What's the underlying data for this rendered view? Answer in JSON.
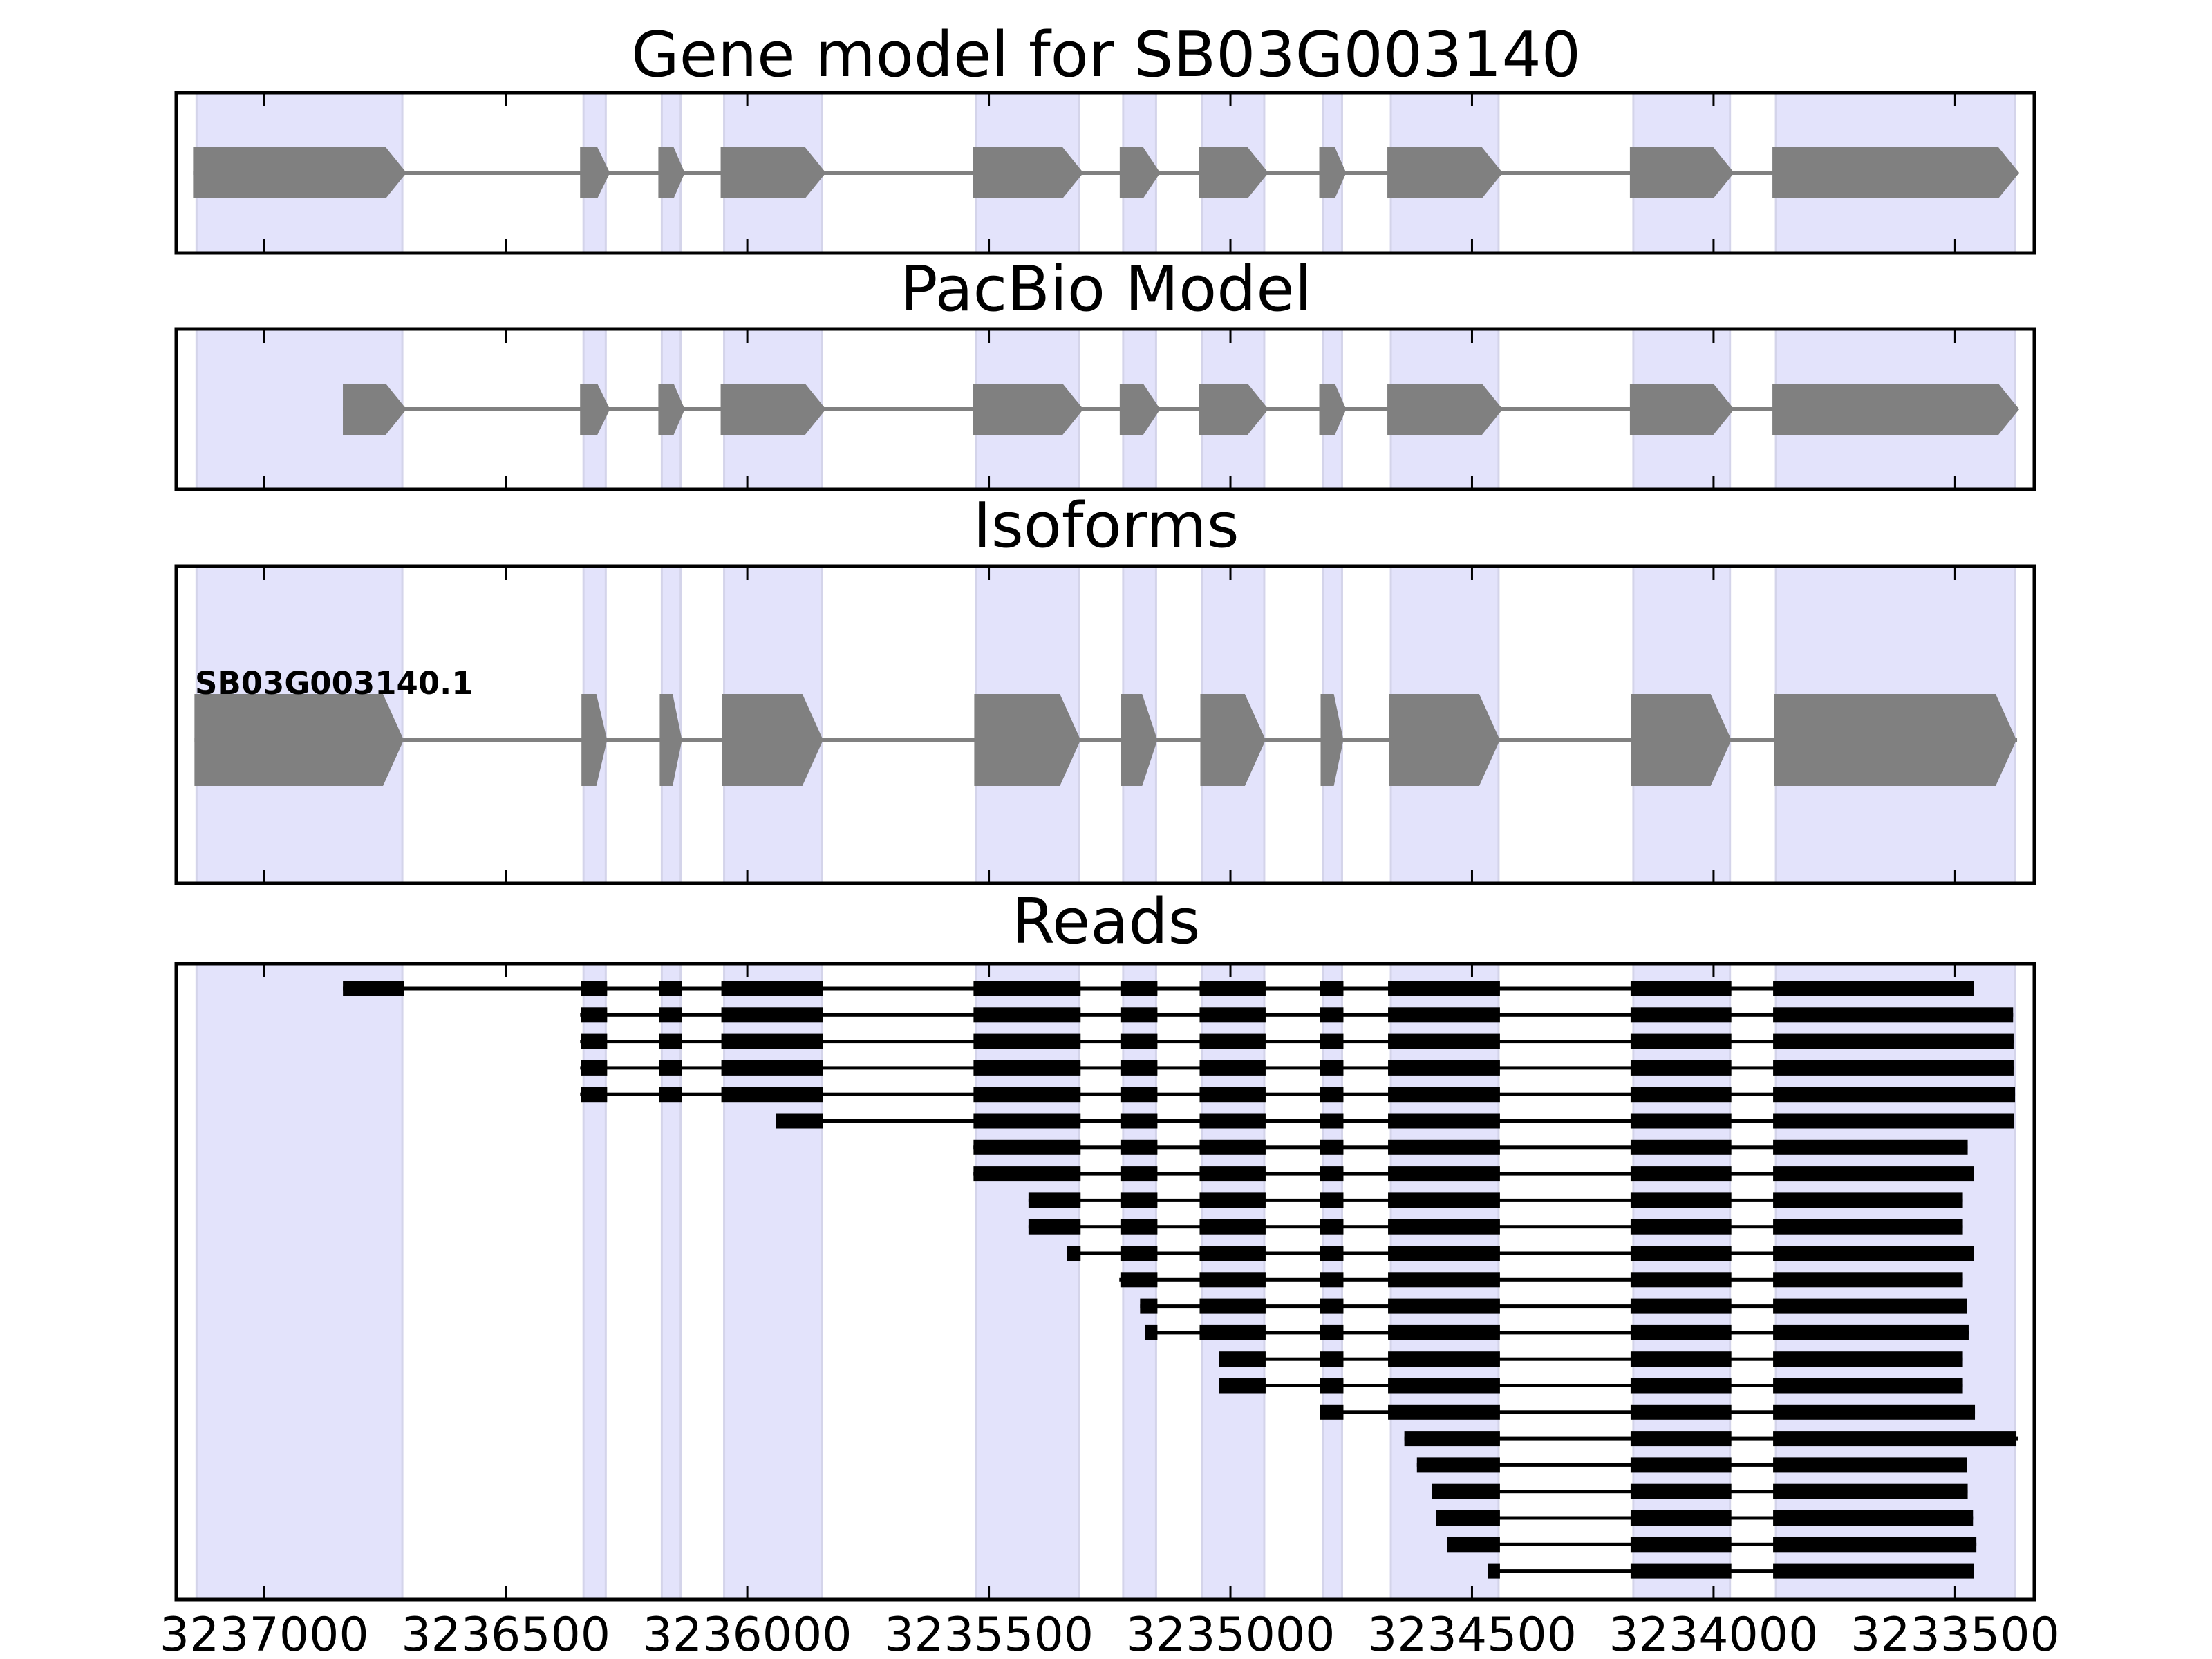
{
  "chart_data": {
    "type": "gene-track",
    "xlabel": "",
    "xlim": [
      3237182,
      3233336
    ],
    "x_ticks": [
      3237000,
      3236500,
      3236000,
      3235500,
      3235000,
      3234500,
      3234000,
      3233500
    ],
    "x_tick_labels": [
      "3237000",
      "3236500",
      "3236000",
      "3235500",
      "3235000",
      "3234500",
      "3234000",
      "3233500"
    ],
    "grid": false,
    "colors": {
      "exon_shade": "#e3e3fb",
      "exon_shade_edge": "#d4d4ea",
      "gene_model": "#808080",
      "read": "#000000",
      "frame": "#000000"
    },
    "exons": [
      {
        "start": 3237140,
        "end": 3236714
      },
      {
        "start": 3236339,
        "end": 3236293
      },
      {
        "start": 3236177,
        "end": 3236138
      },
      {
        "start": 3236048,
        "end": 3235846
      },
      {
        "start": 3235526,
        "end": 3235313
      },
      {
        "start": 3235222,
        "end": 3235154
      },
      {
        "start": 3235058,
        "end": 3234930
      },
      {
        "start": 3234809,
        "end": 3234769
      },
      {
        "start": 3234668,
        "end": 3234445
      },
      {
        "start": 3234166,
        "end": 3233966
      },
      {
        "start": 3233871,
        "end": 3233376
      }
    ],
    "panels": [
      {
        "id": "gene-model",
        "title": "Gene model for SB03G003140",
        "models": [
          {
            "label": "",
            "first_exon_start": 3237140
          }
        ]
      },
      {
        "id": "pacbio-model",
        "title": "PacBio Model",
        "models": [
          {
            "label": "",
            "first_exon_start": 3236830
          }
        ]
      },
      {
        "id": "isoforms",
        "title": "Isoforms",
        "models": [
          {
            "label": "SB03G003140.1",
            "first_exon_start": 3237140
          }
        ]
      },
      {
        "id": "reads",
        "title": "Reads",
        "reads": [
          {
            "start": 3236837,
            "end": 3233461
          },
          {
            "start": 3236346,
            "end": 3233380
          },
          {
            "start": 3236346,
            "end": 3233379
          },
          {
            "start": 3236346,
            "end": 3233379
          },
          {
            "start": 3236346,
            "end": 3233376
          },
          {
            "start": 3235941,
            "end": 3233378
          },
          {
            "start": 3235532,
            "end": 3233474
          },
          {
            "start": 3235532,
            "end": 3233461
          },
          {
            "start": 3235418,
            "end": 3233484
          },
          {
            "start": 3235418,
            "end": 3233484
          },
          {
            "start": 3235338,
            "end": 3233461
          },
          {
            "start": 3235230,
            "end": 3233484
          },
          {
            "start": 3235187,
            "end": 3233476
          },
          {
            "start": 3235177,
            "end": 3233472
          },
          {
            "start": 3235023,
            "end": 3233484
          },
          {
            "start": 3235023,
            "end": 3233484
          },
          {
            "start": 3234815,
            "end": 3233459
          },
          {
            "start": 3234640,
            "end": 3233369
          },
          {
            "start": 3234614,
            "end": 3233476
          },
          {
            "start": 3234583,
            "end": 3233474
          },
          {
            "start": 3234574,
            "end": 3233463
          },
          {
            "start": 3234551,
            "end": 3233456
          },
          {
            "start": 3234467,
            "end": 3233461
          }
        ]
      }
    ]
  }
}
